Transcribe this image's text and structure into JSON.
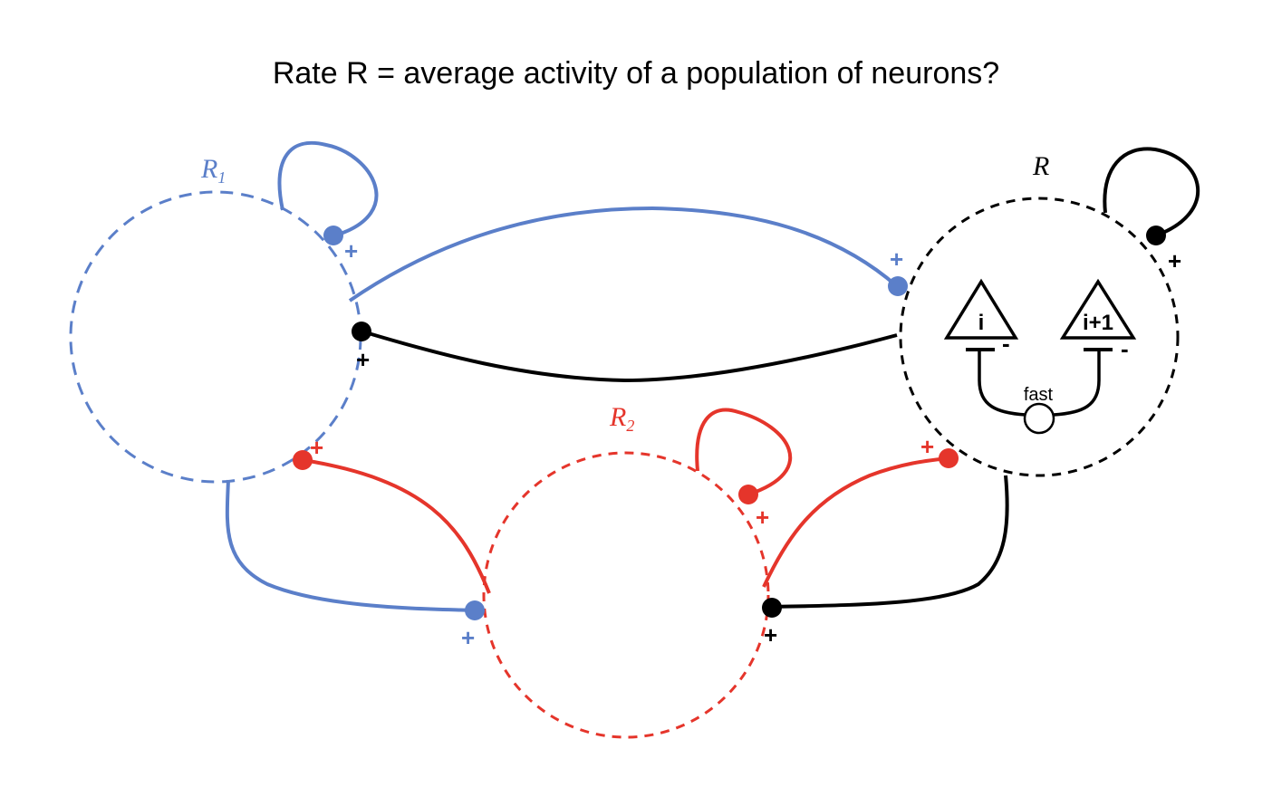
{
  "title": "Rate R = average activity of a population of neurons?",
  "colors": {
    "blue": "#5b7fc9",
    "red": "#e5352b",
    "black": "#000000"
  },
  "nodes": {
    "r1": {
      "label": "R",
      "subscript": "1",
      "color": "#5b7fc9"
    },
    "r2": {
      "label": "R",
      "subscript": "2",
      "color": "#e5352b"
    },
    "r": {
      "label": "R",
      "subscript": "",
      "color": "#000000"
    }
  },
  "signs": {
    "plus": "+",
    "minus": "-"
  },
  "neurons": {
    "left": "i",
    "right": "i+1",
    "fast_label": "fast"
  }
}
